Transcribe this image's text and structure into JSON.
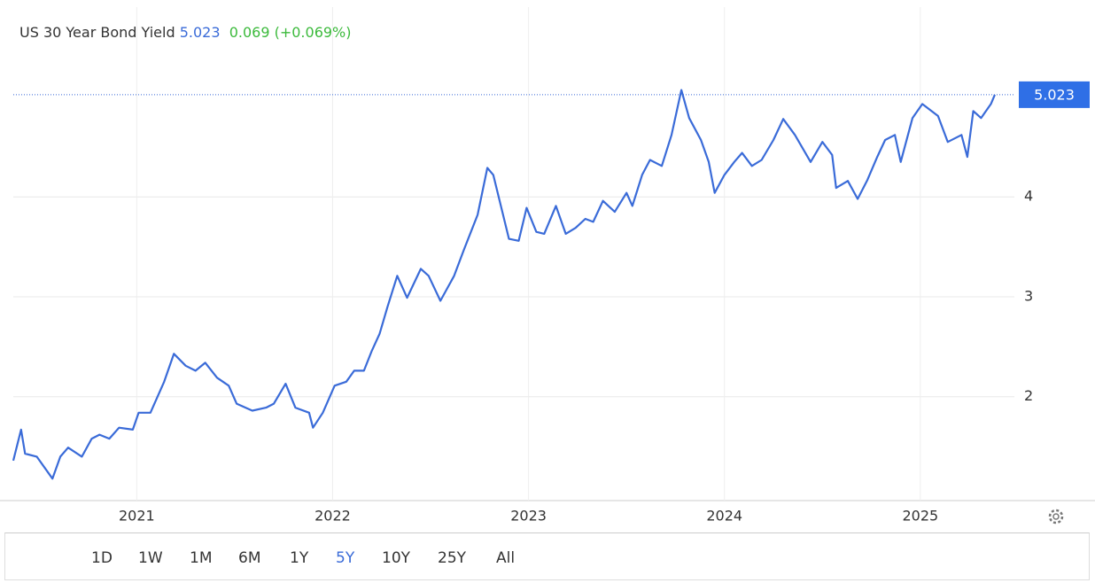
{
  "header": {
    "name": "US 30 Year Bond Yield",
    "price": "5.023",
    "change": "0.069",
    "change_pct": "(+0.069%)"
  },
  "ranges": [
    "1D",
    "1W",
    "1M",
    "6M",
    "1Y",
    "5Y",
    "10Y",
    "25Y",
    "All"
  ],
  "active_range": "5Y",
  "chart_data": {
    "type": "line",
    "color": "#3a6bd8",
    "grid": true,
    "x": [
      2020.37,
      2020.41,
      2020.43,
      2020.49,
      2020.57,
      2020.61,
      2020.65,
      2020.72,
      2020.77,
      2020.81,
      2020.86,
      2020.91,
      2020.98,
      2021.01,
      2021.07,
      2021.14,
      2021.19,
      2021.25,
      2021.3,
      2021.35,
      2021.41,
      2021.47,
      2021.51,
      2021.59,
      2021.66,
      2021.7,
      2021.76,
      2021.81,
      2021.88,
      2021.9,
      2021.95,
      2022.01,
      2022.07,
      2022.11,
      2022.16,
      2022.2,
      2022.24,
      2022.28,
      2022.33,
      2022.38,
      2022.45,
      2022.49,
      2022.55,
      2022.62,
      2022.67,
      2022.74,
      2022.79,
      2022.82,
      2022.9,
      2022.95,
      2022.99,
      2023.04,
      2023.08,
      2023.14,
      2023.19,
      2023.24,
      2023.29,
      2023.33,
      2023.38,
      2023.44,
      2023.5,
      2023.53,
      2023.58,
      2023.62,
      2023.68,
      2023.73,
      2023.78,
      2023.82,
      2023.88,
      2023.92,
      2023.95,
      2024.0,
      2024.05,
      2024.09,
      2024.14,
      2024.19,
      2024.25,
      2024.3,
      2024.36,
      2024.44,
      2024.5,
      2024.55,
      2024.57,
      2024.63,
      2024.68,
      2024.73,
      2024.78,
      2024.82,
      2024.87,
      2024.9,
      2024.96,
      2025.01,
      2025.09,
      2025.14,
      2025.21,
      2025.24,
      2025.27,
      2025.31,
      2025.36,
      2025.38
    ],
    "values": [
      1.36,
      1.67,
      1.43,
      1.4,
      1.18,
      1.4,
      1.49,
      1.4,
      1.58,
      1.62,
      1.58,
      1.69,
      1.67,
      1.84,
      1.84,
      2.15,
      2.43,
      2.31,
      2.26,
      2.34,
      2.19,
      2.11,
      1.93,
      1.86,
      1.89,
      1.93,
      2.13,
      1.89,
      1.84,
      1.69,
      1.84,
      2.11,
      2.15,
      2.26,
      2.26,
      2.46,
      2.63,
      2.9,
      3.21,
      2.99,
      3.28,
      3.21,
      2.96,
      3.21,
      3.47,
      3.82,
      4.29,
      4.22,
      3.58,
      3.56,
      3.89,
      3.65,
      3.63,
      3.91,
      3.63,
      3.69,
      3.78,
      3.75,
      3.96,
      3.85,
      4.04,
      3.91,
      4.22,
      4.37,
      4.31,
      4.62,
      5.07,
      4.79,
      4.57,
      4.35,
      4.04,
      4.22,
      4.35,
      4.44,
      4.31,
      4.37,
      4.57,
      4.78,
      4.62,
      4.35,
      4.55,
      4.42,
      4.09,
      4.16,
      3.98,
      4.17,
      4.4,
      4.57,
      4.62,
      4.35,
      4.79,
      4.93,
      4.81,
      4.55,
      4.62,
      4.4,
      4.86,
      4.79,
      4.93,
      5.023
    ],
    "xlim": [
      2020.37,
      2025.48
    ],
    "xticks": [
      2021,
      2022,
      2023,
      2024,
      2025
    ],
    "ylim": [
      0.96,
      5.9
    ],
    "yticks": [
      2,
      3,
      4
    ]
  }
}
